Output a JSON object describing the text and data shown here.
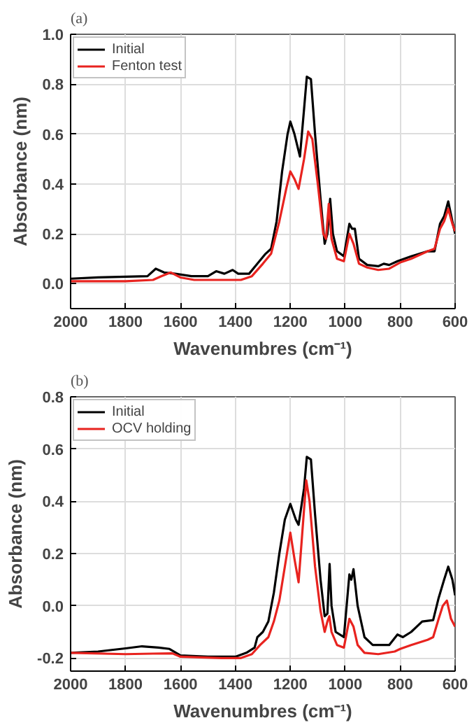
{
  "chart_data": [
    {
      "type": "line",
      "title": "(a)",
      "xlabel": "Wavenumbres (cm⁻¹)",
      "ylabel": "Absorbance (nm)",
      "xlim": [
        2000,
        600
      ],
      "ylim": [
        -0.1,
        1.0
      ],
      "xticks": [
        2000,
        1800,
        1600,
        1400,
        1200,
        1000,
        800,
        600
      ],
      "yticks": [
        {
          "value": 0,
          "label": "0.0"
        },
        {
          "value": 0.2,
          "label": "0.2"
        },
        {
          "value": 0.4,
          "label": "0.4"
        },
        {
          "value": 0.6,
          "label": "0.6"
        },
        {
          "value": 0.8,
          "label": "0.8"
        },
        {
          "value": 1.0,
          "label": "1.0"
        }
      ],
      "grid": true,
      "legend": "top left",
      "line_style": "solid",
      "series": [
        {
          "name": "Initial",
          "color": "#000000",
          "x": [
            2000,
            1900,
            1720,
            1690,
            1660,
            1620,
            1560,
            1500,
            1470,
            1440,
            1410,
            1390,
            1350,
            1320,
            1290,
            1270,
            1250,
            1230,
            1210,
            1200,
            1185,
            1165,
            1150,
            1140,
            1125,
            1110,
            1090,
            1075,
            1065,
            1055,
            1045,
            1030,
            1005,
            985,
            975,
            965,
            950,
            920,
            880,
            860,
            840,
            810,
            760,
            700,
            675,
            655,
            640,
            625,
            610,
            600
          ],
          "values": [
            0.02,
            0.025,
            0.03,
            0.06,
            0.045,
            0.04,
            0.03,
            0.03,
            0.05,
            0.04,
            0.055,
            0.04,
            0.04,
            0.08,
            0.12,
            0.14,
            0.25,
            0.45,
            0.6,
            0.65,
            0.6,
            0.51,
            0.7,
            0.83,
            0.82,
            0.6,
            0.34,
            0.16,
            0.2,
            0.34,
            0.2,
            0.13,
            0.11,
            0.24,
            0.22,
            0.22,
            0.1,
            0.075,
            0.07,
            0.08,
            0.075,
            0.09,
            0.11,
            0.13,
            0.13,
            0.24,
            0.27,
            0.33,
            0.25,
            0.2
          ]
        },
        {
          "name": "Fenton test",
          "color": "#e8231f",
          "x": [
            2000,
            1800,
            1700,
            1670,
            1635,
            1600,
            1550,
            1450,
            1380,
            1340,
            1300,
            1270,
            1240,
            1215,
            1200,
            1185,
            1170,
            1150,
            1135,
            1120,
            1100,
            1080,
            1070,
            1060,
            1050,
            1030,
            1005,
            985,
            970,
            950,
            920,
            880,
            840,
            800,
            760,
            700,
            675,
            655,
            640,
            625,
            610,
            600
          ],
          "values": [
            0.01,
            0.01,
            0.015,
            0.03,
            0.045,
            0.025,
            0.015,
            0.015,
            0.015,
            0.03,
            0.08,
            0.12,
            0.25,
            0.38,
            0.45,
            0.42,
            0.38,
            0.5,
            0.61,
            0.58,
            0.4,
            0.2,
            0.18,
            0.32,
            0.18,
            0.1,
            0.09,
            0.2,
            0.16,
            0.08,
            0.065,
            0.055,
            0.06,
            0.085,
            0.1,
            0.13,
            0.14,
            0.22,
            0.25,
            0.3,
            0.24,
            0.21
          ]
        }
      ]
    },
    {
      "type": "line",
      "title": "(b)",
      "xlabel": "Wavenumbres (cm⁻¹)",
      "ylabel": "Absorbance (nm)",
      "xlim": [
        2000,
        600
      ],
      "ylim": [
        -0.25,
        0.8
      ],
      "xticks": [
        2000,
        1800,
        1600,
        1400,
        1200,
        1000,
        800,
        600
      ],
      "yticks": [
        {
          "value": -0.2,
          "label": "-0.2"
        },
        {
          "value": 0,
          "label": "0.0"
        },
        {
          "value": 0.2,
          "label": "0.2"
        },
        {
          "value": 0.4,
          "label": "0.4"
        },
        {
          "value": 0.6,
          "label": "0.6"
        },
        {
          "value": 0.8,
          "label": "0.8"
        }
      ],
      "grid": true,
      "legend": "top left",
      "line_style": "solid",
      "series": [
        {
          "name": "Initial",
          "color": "#000000",
          "x": [
            2000,
            1900,
            1800,
            1740,
            1680,
            1640,
            1600,
            1500,
            1400,
            1360,
            1330,
            1320,
            1300,
            1280,
            1260,
            1240,
            1220,
            1200,
            1180,
            1170,
            1150,
            1140,
            1125,
            1110,
            1090,
            1075,
            1065,
            1057,
            1050,
            1035,
            1005,
            985,
            978,
            970,
            955,
            930,
            900,
            840,
            810,
            790,
            760,
            720,
            680,
            660,
            640,
            625,
            610,
            600
          ],
          "values": [
            -0.18,
            -0.175,
            -0.163,
            -0.155,
            -0.16,
            -0.165,
            -0.19,
            -0.195,
            -0.195,
            -0.18,
            -0.16,
            -0.12,
            -0.1,
            -0.06,
            0.05,
            0.2,
            0.33,
            0.39,
            0.33,
            0.31,
            0.45,
            0.57,
            0.56,
            0.35,
            0.1,
            -0.04,
            -0.03,
            0.16,
            0.0,
            -0.1,
            -0.12,
            0.12,
            0.1,
            0.14,
            0.0,
            -0.12,
            -0.15,
            -0.15,
            -0.11,
            -0.12,
            -0.1,
            -0.06,
            -0.055,
            0.03,
            0.1,
            0.15,
            0.1,
            0.04
          ]
        },
        {
          "name": "OCV holding",
          "color": "#e8231f",
          "x": [
            2000,
            1800,
            1700,
            1630,
            1600,
            1450,
            1380,
            1340,
            1310,
            1280,
            1260,
            1240,
            1220,
            1200,
            1185,
            1170,
            1155,
            1142,
            1130,
            1110,
            1090,
            1075,
            1065,
            1058,
            1050,
            1030,
            1005,
            985,
            970,
            955,
            930,
            880,
            820,
            800,
            760,
            700,
            680,
            660,
            645,
            630,
            615,
            600
          ],
          "values": [
            -0.18,
            -0.185,
            -0.183,
            -0.182,
            -0.195,
            -0.2,
            -0.2,
            -0.185,
            -0.15,
            -0.12,
            -0.06,
            0.02,
            0.15,
            0.28,
            0.18,
            0.09,
            0.3,
            0.48,
            0.4,
            0.15,
            -0.02,
            -0.1,
            -0.06,
            -0.04,
            -0.1,
            -0.15,
            -0.16,
            -0.05,
            -0.08,
            -0.15,
            -0.18,
            -0.185,
            -0.175,
            -0.165,
            -0.15,
            -0.13,
            -0.12,
            -0.05,
            0.0,
            0.02,
            -0.05,
            -0.08
          ]
        }
      ]
    }
  ]
}
